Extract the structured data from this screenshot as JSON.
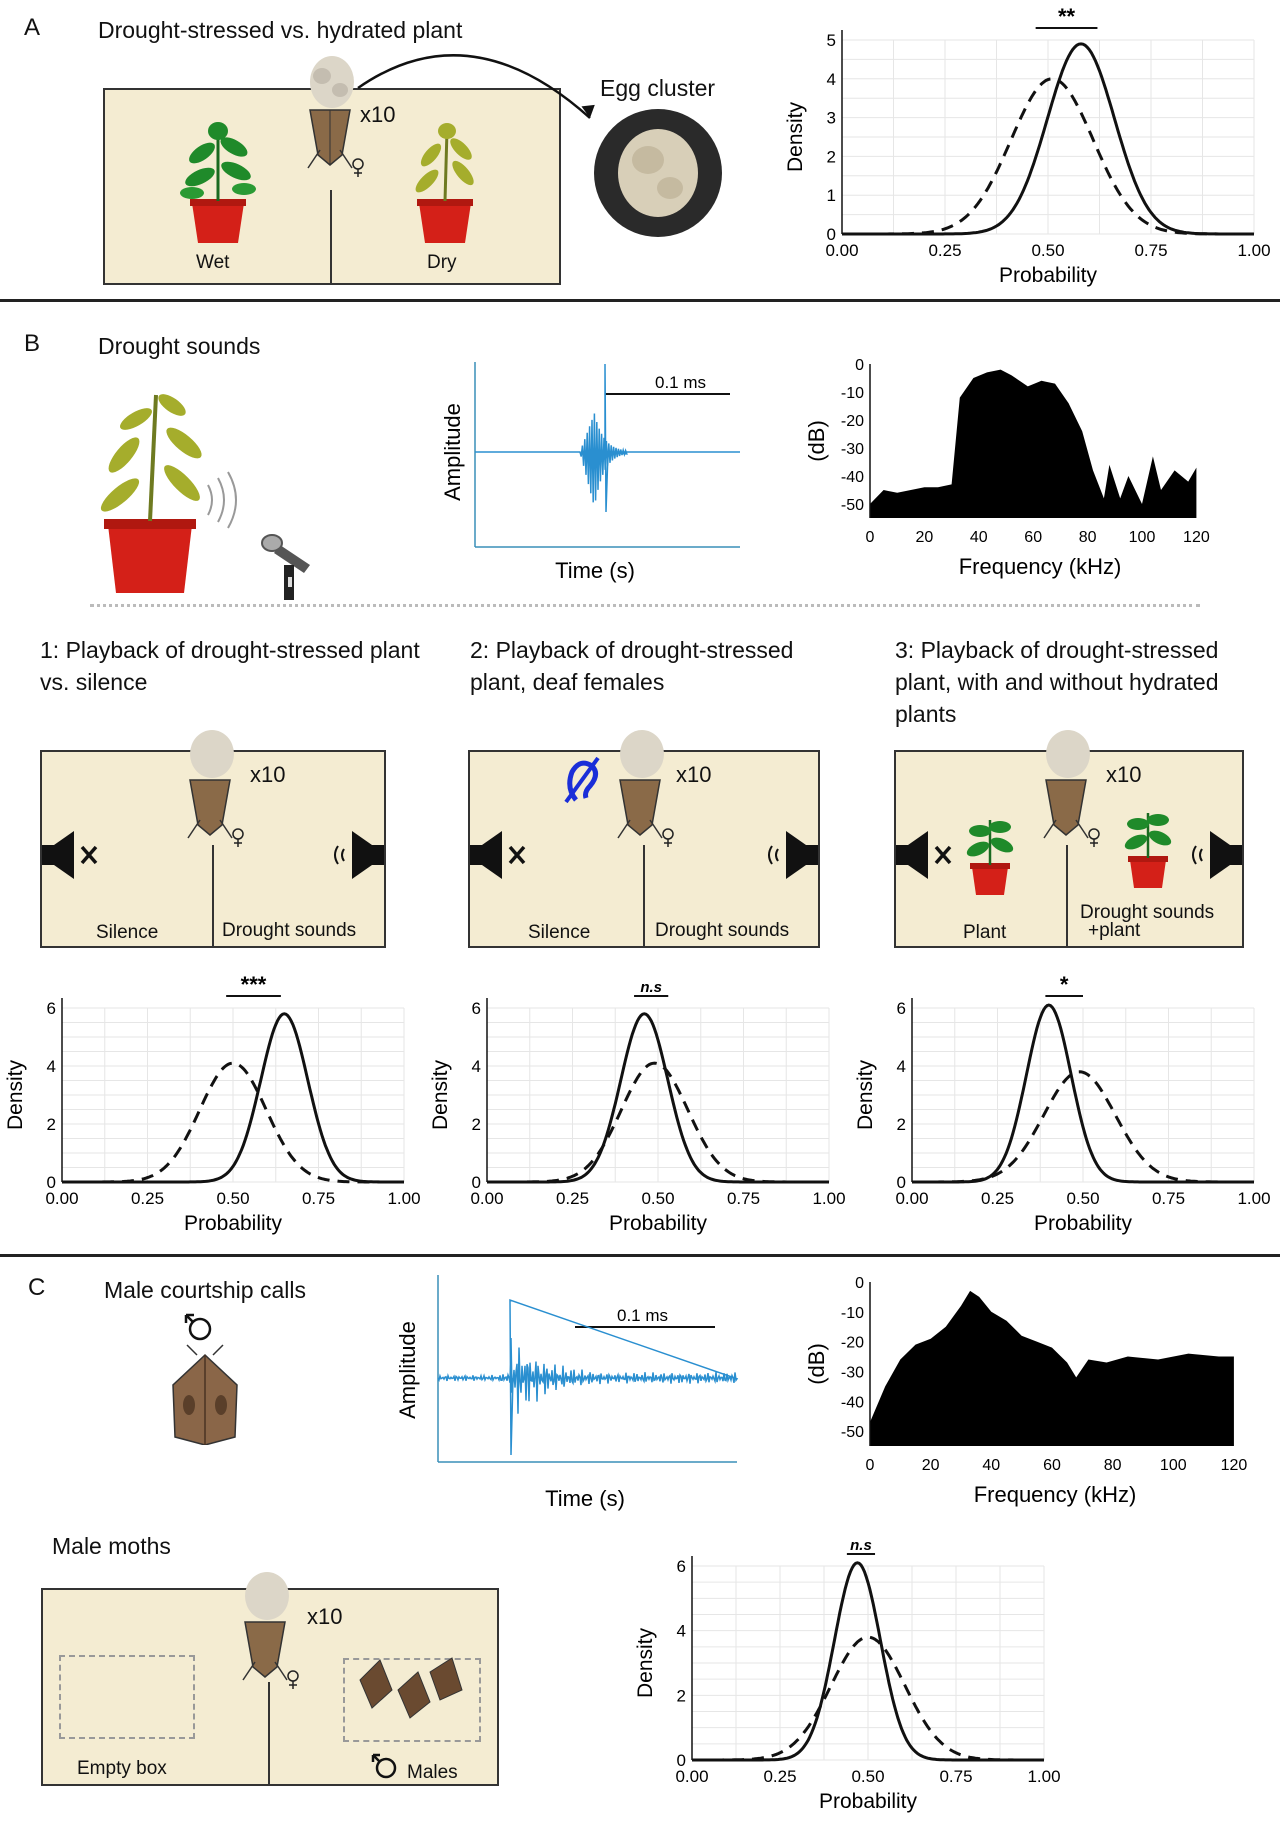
{
  "panelA": {
    "letter": "A",
    "title": "Drought-stressed vs. hydrated plant",
    "multiplier": "x10",
    "left_label": "Wet",
    "right_label": "Dry",
    "egg_label": "Egg cluster"
  },
  "panelB": {
    "letter": "B",
    "title": "Drought sounds",
    "waveform": {
      "scale_label": "0.1 ms",
      "ylabel": "Amplitude",
      "xlabel": "Time (s)"
    },
    "exp1": {
      "title": "1: Playback of drought-stressed plant vs. silence",
      "multiplier": "x10",
      "left_label": "Silence",
      "right_label": "Drought sounds"
    },
    "exp2": {
      "title": "2: Playback of drought-stressed plant, deaf females",
      "multiplier": "x10",
      "left_label": "Silence",
      "right_label": "Drought sounds"
    },
    "exp3": {
      "title": "3: Playback of drought-stressed plant, with and without hydrated plants",
      "multiplier": "x10",
      "left_label": "Plant",
      "right_label_line1": "Drought sounds",
      "right_label_line2": "+plant"
    }
  },
  "panelC": {
    "letter": "C",
    "title": "Male courtship calls",
    "waveform": {
      "scale_label": "0.1 ms",
      "ylabel": "Amplitude",
      "xlabel": "Time (s)"
    },
    "arena_title": "Male moths",
    "multiplier": "x10",
    "left_label": "Empty box",
    "right_label": "Males"
  },
  "colors": {
    "arena": "#f4ecd2",
    "waveform": "#2a8fd0",
    "pot": "#d42018",
    "leaf_green": "#1f8a2a",
    "leaf_dry": "#a5ad2c",
    "ear_icon": "#1a2ed8"
  },
  "chart_data": [
    {
      "id": "A",
      "type": "line",
      "xlabel": "Probability",
      "ylabel": "Density",
      "xlim": [
        0,
        1
      ],
      "ylim": [
        0,
        5
      ],
      "xticks": [
        "0.00",
        "0.25",
        "0.50",
        "0.75",
        "1.00"
      ],
      "yticks": [
        "0",
        "1",
        "2",
        "3",
        "4",
        "5"
      ],
      "significance": "**",
      "sig_range": [
        0.47,
        0.62
      ],
      "series": [
        {
          "style": "solid",
          "mean": 0.58,
          "peak": 4.9
        },
        {
          "style": "dashed",
          "mean": 0.51,
          "peak": 4.0
        }
      ]
    },
    {
      "id": "B1",
      "type": "line",
      "xlabel": "Probability",
      "ylabel": "Density",
      "xlim": [
        0,
        1
      ],
      "ylim": [
        0,
        6
      ],
      "xticks": [
        "0.00",
        "0.25",
        "0.50",
        "0.75",
        "1.00"
      ],
      "yticks": [
        "0",
        "2",
        "4",
        "6"
      ],
      "significance": "***",
      "sig_range": [
        0.48,
        0.64
      ],
      "series": [
        {
          "style": "solid",
          "mean": 0.65,
          "peak": 5.8
        },
        {
          "style": "dashed",
          "mean": 0.5,
          "peak": 4.1
        }
      ]
    },
    {
      "id": "B2",
      "type": "line",
      "xlabel": "Probability",
      "ylabel": "Density",
      "xlim": [
        0,
        1
      ],
      "ylim": [
        0,
        6
      ],
      "xticks": [
        "0.00",
        "0.25",
        "0.50",
        "0.75",
        "1.00"
      ],
      "yticks": [
        "0",
        "2",
        "4",
        "6"
      ],
      "significance": "n.s",
      "sig_range": [
        0.43,
        0.53
      ],
      "series": [
        {
          "style": "solid",
          "mean": 0.46,
          "peak": 5.8
        },
        {
          "style": "dashed",
          "mean": 0.49,
          "peak": 4.1
        }
      ]
    },
    {
      "id": "B3",
      "type": "line",
      "xlabel": "Probability",
      "ylabel": "Density",
      "xlim": [
        0,
        1
      ],
      "ylim": [
        0,
        6
      ],
      "xticks": [
        "0.00",
        "0.25",
        "0.50",
        "0.75",
        "1.00"
      ],
      "yticks": [
        "0",
        "2",
        "4",
        "6"
      ],
      "significance": "*",
      "sig_range": [
        0.39,
        0.5
      ],
      "series": [
        {
          "style": "solid",
          "mean": 0.4,
          "peak": 6.1
        },
        {
          "style": "dashed",
          "mean": 0.49,
          "peak": 3.8
        }
      ]
    },
    {
      "id": "C",
      "type": "line",
      "xlabel": "Probability",
      "ylabel": "Density",
      "xlim": [
        0,
        1
      ],
      "ylim": [
        0,
        6
      ],
      "xticks": [
        "0.00",
        "0.25",
        "0.50",
        "0.75",
        "1.00"
      ],
      "yticks": [
        "0",
        "2",
        "4",
        "6"
      ],
      "significance": "n.s",
      "sig_range": [
        0.44,
        0.52
      ],
      "series": [
        {
          "style": "solid",
          "mean": 0.47,
          "peak": 6.1
        },
        {
          "style": "dashed",
          "mean": 0.5,
          "peak": 3.8
        }
      ]
    },
    {
      "id": "B_spectrum",
      "type": "area",
      "xlabel": "Frequency (kHz)",
      "ylabel": "(dB)",
      "xlim": [
        0,
        125
      ],
      "ylim": [
        -55,
        0
      ],
      "xticks": [
        "0",
        "20",
        "40",
        "60",
        "80",
        "100",
        "120"
      ],
      "yticks": [
        "0",
        "-10",
        "-20",
        "-30",
        "-40",
        "-50"
      ],
      "x": [
        0,
        5,
        10,
        15,
        20,
        25,
        30,
        33,
        38,
        43,
        48,
        52,
        58,
        63,
        68,
        73,
        78,
        82,
        86,
        88,
        92,
        95,
        100,
        104,
        107,
        112,
        117,
        120
      ],
      "y": [
        -50,
        -45,
        -46,
        -45,
        -44,
        -44,
        -43,
        -12,
        -5,
        -3,
        -2,
        -4,
        -8,
        -6,
        -7,
        -14,
        -24,
        -38,
        -48,
        -36,
        -48,
        -40,
        -50,
        -33,
        -45,
        -38,
        -42,
        -37
      ]
    },
    {
      "id": "C_spectrum",
      "type": "area",
      "xlabel": "Frequency (kHz)",
      "ylabel": "(dB)",
      "xlim": [
        0,
        122
      ],
      "ylim": [
        -55,
        0
      ],
      "xticks": [
        "0",
        "20",
        "40",
        "60",
        "80",
        "100",
        "120"
      ],
      "yticks": [
        "0",
        "-10",
        "-20",
        "-30",
        "-40",
        "-50"
      ],
      "x": [
        0,
        5,
        10,
        15,
        20,
        25,
        30,
        33,
        36,
        40,
        45,
        50,
        55,
        60,
        65,
        68,
        72,
        78,
        85,
        95,
        105,
        115,
        120
      ],
      "y": [
        -47,
        -35,
        -26,
        -21,
        -19,
        -15,
        -8,
        -3,
        -5,
        -10,
        -13,
        -18,
        -20,
        -22,
        -27,
        -32,
        -26,
        -27,
        -25,
        -26,
        -24,
        -25,
        -25
      ]
    }
  ]
}
